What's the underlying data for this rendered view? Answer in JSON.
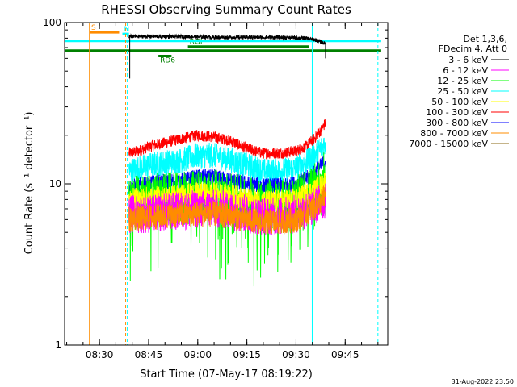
{
  "chart_data": {
    "type": "line",
    "title": "RHESSI Observing Summary Count Rates",
    "xlabel": "Start Time (07-May-17 08:19:22)",
    "ylabel": "Count Rate (s⁻¹ detector⁻¹)",
    "yscale": "log",
    "ylim": [
      1,
      100
    ],
    "xlim_minutes": [
      "08:19:22",
      "09:58:00"
    ],
    "x_ticks": [
      "08:30",
      "08:45",
      "09:00",
      "09:15",
      "09:30",
      "09:45"
    ],
    "y_ticks": [
      "1",
      "10",
      "100"
    ],
    "grid": false,
    "legend_position": "top-right",
    "legend_header": [
      "Det 1,3,6,",
      "FDecim 4, Att 0"
    ],
    "series": [
      {
        "name": "3 - 6 keV",
        "color": "#000000",
        "x": [
          "08:39",
          "08:45",
          "08:55",
          "09:05",
          "09:15",
          "09:25",
          "09:33",
          "09:36",
          "09:39"
        ],
        "y": [
          82,
          82,
          82,
          81,
          81,
          81,
          80,
          78,
          74
        ]
      },
      {
        "name": "6 - 12 keV",
        "color": "#ff00ff",
        "x": [
          "08:39",
          "08:45",
          "08:50",
          "08:55",
          "09:00",
          "09:05",
          "09:10",
          "09:15",
          "09:20",
          "09:25",
          "09:30",
          "09:34",
          "09:37",
          "09:39"
        ],
        "y": [
          6.5,
          6.5,
          6.7,
          6.8,
          7.0,
          7.0,
          6.8,
          6.5,
          6.3,
          6.3,
          6.5,
          7.0,
          7.5,
          8.0
        ]
      },
      {
        "name": "12 - 25 keV",
        "color": "#00ff00",
        "x": [
          "08:39",
          "08:45",
          "08:50",
          "08:55",
          "09:00",
          "09:05",
          "09:10",
          "09:15",
          "09:20",
          "09:25",
          "09:30",
          "09:34",
          "09:37",
          "09:39"
        ],
        "y": [
          7.5,
          7.8,
          8.0,
          8.0,
          8.3,
          8.3,
          8.0,
          7.5,
          7.3,
          7.3,
          7.5,
          8.5,
          9.5,
          11
        ]
      },
      {
        "name": "25 - 50 keV",
        "color": "#00ffff",
        "x": [
          "08:39",
          "08:45",
          "08:50",
          "08:55",
          "09:00",
          "09:05",
          "09:10",
          "09:15",
          "09:20",
          "09:25",
          "09:30",
          "09:34",
          "09:37",
          "09:39"
        ],
        "y": [
          12,
          13,
          13.5,
          14,
          15,
          15,
          14,
          13,
          12,
          12,
          12.5,
          14,
          16,
          18
        ]
      },
      {
        "name": "50 - 100 keV",
        "color": "#ffff00",
        "x": [
          "08:39",
          "08:45",
          "08:50",
          "08:55",
          "09:00",
          "09:05",
          "09:10",
          "09:15",
          "09:20",
          "09:25",
          "09:30",
          "09:34",
          "09:37",
          "09:39"
        ],
        "y": [
          8.0,
          8.2,
          8.3,
          8.5,
          8.7,
          8.7,
          8.5,
          8.0,
          7.8,
          7.8,
          8.0,
          8.8,
          9.5,
          10.5
        ]
      },
      {
        "name": "100 - 300 keV",
        "color": "#ff0000",
        "x": [
          "08:39",
          "08:42",
          "08:45",
          "08:50",
          "08:55",
          "09:00",
          "09:05",
          "09:10",
          "09:15",
          "09:20",
          "09:25",
          "09:30",
          "09:33",
          "09:36",
          "09:38",
          "09:39"
        ],
        "y": [
          15.5,
          16,
          17,
          18,
          19,
          20,
          19.5,
          18.5,
          16.5,
          15.5,
          15.5,
          16,
          17,
          19.5,
          22,
          24
        ]
      },
      {
        "name": "300 - 800 keV",
        "color": "#0000ff",
        "x": [
          "08:39",
          "08:45",
          "08:50",
          "08:55",
          "09:00",
          "09:05",
          "09:10",
          "09:15",
          "09:20",
          "09:25",
          "09:30",
          "09:34",
          "09:37",
          "09:39"
        ],
        "y": [
          9.5,
          10,
          10.3,
          10.5,
          11,
          11,
          10.5,
          10,
          9.7,
          9.7,
          10,
          11,
          12.5,
          14
        ]
      },
      {
        "name": "800 - 7000 keV",
        "color": "#ff8c00",
        "x": [
          "08:39",
          "08:45",
          "08:50",
          "08:55",
          "09:00",
          "09:05",
          "09:10",
          "09:15",
          "09:20",
          "09:25",
          "09:30",
          "09:34",
          "09:37",
          "09:39"
        ],
        "y": [
          6.0,
          6.2,
          6.3,
          6.4,
          6.5,
          6.5,
          6.3,
          6.0,
          5.8,
          5.8,
          6.0,
          6.8,
          7.5,
          8.5
        ]
      },
      {
        "name": "7000 - 15000 keV",
        "color": "#8b6914",
        "x": [],
        "y": []
      }
    ],
    "flags": [
      {
        "label": "S",
        "color": "#ff8c00",
        "x_start": "08:27",
        "x_end": "08:36",
        "level": 87
      },
      {
        "label": "N",
        "color": "#00ffff",
        "x_start": "08:37",
        "x_end": "08:39",
        "level": 85
      },
      {
        "label": "RGI",
        "color": "#008000",
        "x_start": "08:57",
        "x_end": "09:34",
        "level": 71
      },
      {
        "label": "RD6",
        "color": "#008000",
        "x_start": "08:48",
        "x_end": "08:52",
        "level": 62
      }
    ],
    "footer_date": "31-Aug-2022 23:50"
  }
}
